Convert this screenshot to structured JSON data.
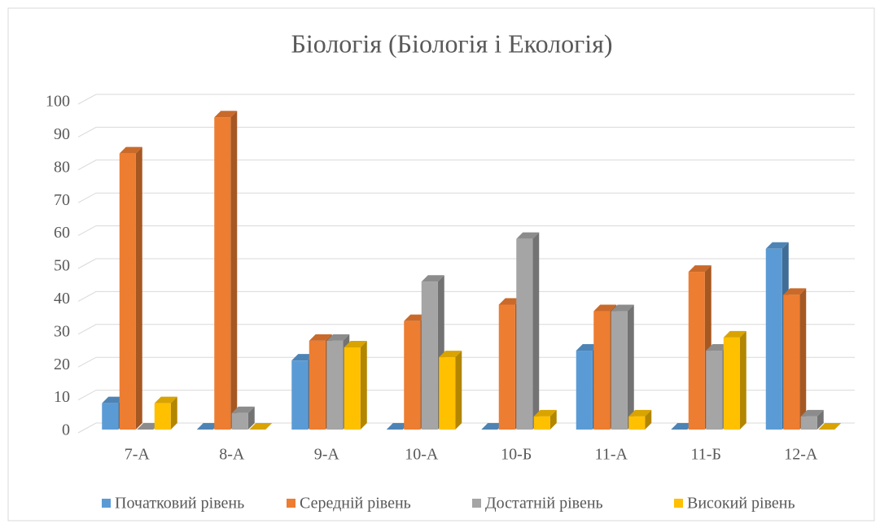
{
  "chart_data": {
    "type": "bar",
    "title": "Біологія (Біологія і Екологія)",
    "categories": [
      "7-А",
      "8-А",
      "9-А",
      "10-А",
      "10-Б",
      "11-А",
      "11-Б",
      "12-А"
    ],
    "series": [
      {
        "name": "Початковий рівень",
        "color": "#5b9bd5",
        "values": [
          8,
          0,
          21,
          0,
          0,
          24,
          0,
          55
        ]
      },
      {
        "name": "Середній рівень",
        "color": "#ed7d31",
        "values": [
          84,
          95,
          27,
          33,
          38,
          36,
          48,
          41
        ]
      },
      {
        "name": "Достатній рівень",
        "color": "#a5a5a5",
        "values": [
          0,
          5,
          27,
          45,
          58,
          36,
          24,
          4
        ]
      },
      {
        "name": "Високий рівень",
        "color": "#ffc000",
        "values": [
          8,
          0,
          25,
          22,
          4,
          4,
          28,
          0
        ]
      }
    ],
    "ylim": [
      0,
      100
    ],
    "yticks": [
      0,
      10,
      20,
      30,
      40,
      50,
      60,
      70,
      80,
      90,
      100
    ],
    "grid": true,
    "legend": "bottom"
  }
}
